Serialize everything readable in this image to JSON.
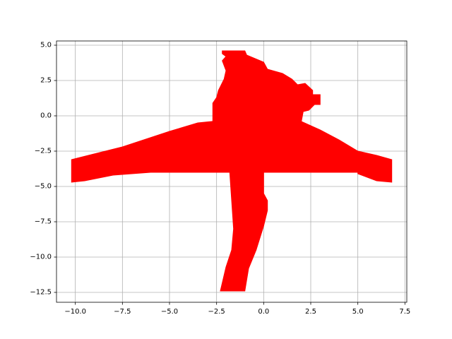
{
  "chart_data": {
    "type": "area",
    "title": "",
    "xlabel": "",
    "ylabel": "",
    "xlim": [
      -11.0,
      7.6
    ],
    "ylim": [
      -13.2,
      5.3
    ],
    "grid": true,
    "legend": "none",
    "xticks": [
      -10.0,
      -7.5,
      -5.0,
      -2.5,
      0.0,
      2.5,
      5.0,
      7.5
    ],
    "xtick_labels": [
      "−10.0",
      "−7.5",
      "−5.0",
      "−2.5",
      "0.0",
      "2.5",
      "5.0",
      "7.5"
    ],
    "yticks": [
      5.0,
      2.5,
      0.0,
      -2.5,
      -5.0,
      -7.5,
      -10.0,
      -12.5
    ],
    "ytick_labels": [
      "5.0",
      "2.5",
      "0.0",
      "−2.5",
      "−5.0",
      "−7.5",
      "−10.0",
      "−12.5"
    ],
    "series": [
      {
        "color": "#ff0000",
        "regions": [
          {
            "part": "wings",
            "points": [
              [
                -10.2,
                -3.1
              ],
              [
                -7.5,
                -2.2
              ],
              [
                -5.0,
                -1.1
              ],
              [
                -3.5,
                -0.5
              ],
              [
                -2.0,
                -0.3
              ],
              [
                0.0,
                -0.3
              ],
              [
                2.0,
                -0.4
              ],
              [
                3.0,
                -1.0
              ],
              [
                4.0,
                -1.7
              ],
              [
                5.0,
                -2.5
              ],
              [
                6.0,
                -2.8
              ],
              [
                6.8,
                -3.1
              ],
              [
                6.8,
                -4.7
              ],
              [
                6.0,
                -4.6
              ],
              [
                5.0,
                -4.1
              ],
              [
                5.0,
                -4.0
              ],
              [
                -6.0,
                -4.0
              ],
              [
                -8.0,
                -4.2
              ],
              [
                -9.5,
                -4.6
              ],
              [
                -10.2,
                -4.7
              ]
            ]
          },
          {
            "part": "top-cluster",
            "points": [
              [
                -2.2,
                4.6
              ],
              [
                -1.0,
                4.6
              ],
              [
                -0.9,
                4.3
              ],
              [
                0.0,
                3.8
              ],
              [
                0.2,
                3.3
              ],
              [
                1.0,
                3.0
              ],
              [
                1.5,
                2.6
              ],
              [
                1.8,
                2.2
              ],
              [
                2.2,
                2.3
              ],
              [
                2.6,
                1.8
              ],
              [
                2.6,
                1.5
              ],
              [
                3.0,
                1.5
              ],
              [
                3.0,
                0.8
              ],
              [
                2.7,
                0.8
              ],
              [
                2.4,
                0.4
              ],
              [
                2.1,
                0.3
              ],
              [
                2.0,
                -0.4
              ],
              [
                -2.7,
                -0.4
              ],
              [
                -2.7,
                0.9
              ],
              [
                -2.5,
                1.3
              ],
              [
                -2.4,
                1.8
              ],
              [
                -2.1,
                2.6
              ],
              [
                -2.0,
                3.2
              ],
              [
                -2.2,
                3.9
              ],
              [
                -2.0,
                4.2
              ],
              [
                -2.2,
                4.4
              ]
            ]
          },
          {
            "part": "stem",
            "points": [
              [
                -1.8,
                -4.0
              ],
              [
                0.0,
                -4.0
              ],
              [
                0.0,
                -5.5
              ],
              [
                0.2,
                -6.0
              ],
              [
                0.2,
                -6.7
              ],
              [
                0.0,
                -7.8
              ],
              [
                -0.4,
                -9.5
              ],
              [
                -0.8,
                -10.8
              ],
              [
                -1.0,
                -12.4
              ],
              [
                -2.3,
                -12.4
              ],
              [
                -2.0,
                -10.7
              ],
              [
                -1.7,
                -9.5
              ],
              [
                -1.6,
                -8.0
              ],
              [
                -1.7,
                -6.0
              ]
            ]
          }
        ]
      }
    ]
  }
}
